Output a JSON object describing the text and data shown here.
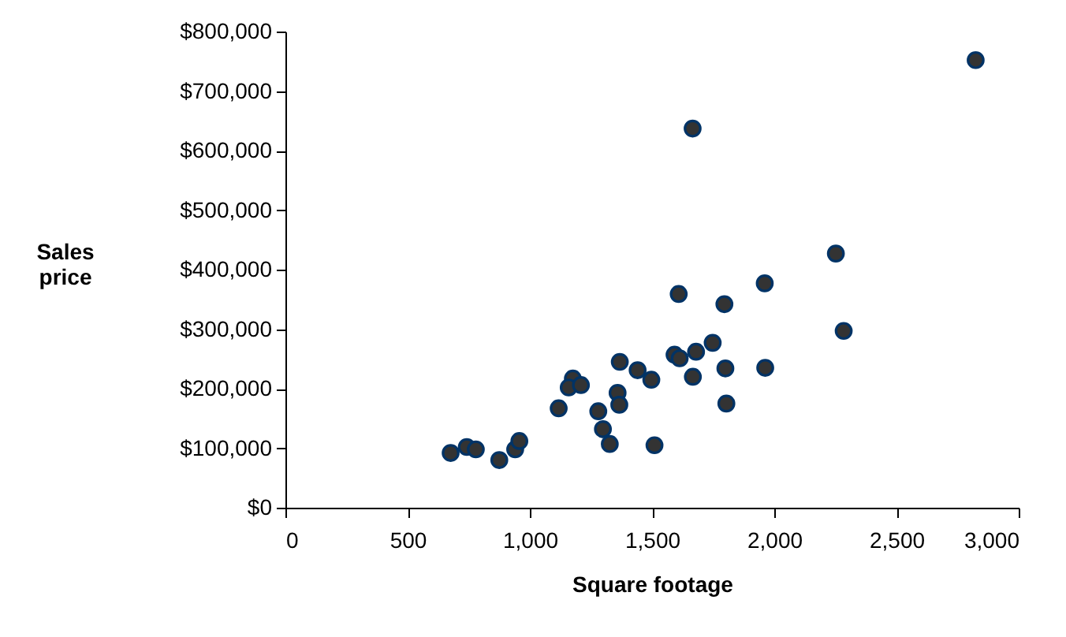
{
  "chart_data": {
    "type": "scatter",
    "xlabel": "Square footage",
    "ylabel": "Sales price",
    "x": [
      676,
      742,
      779,
      875,
      940,
      957,
      1118,
      1176,
      1159,
      1209,
      1280,
      1299,
      1327,
      1368,
      1359,
      1366,
      1441,
      1497,
      1510,
      1609,
      1592,
      1613,
      1680,
      1748,
      1667,
      1796,
      1800,
      1804,
      1961,
      1963,
      2252,
      2284,
      1666,
      2824
    ],
    "series": [
      {
        "color": "#333333",
        "values": [
          92000,
          102000,
          98000,
          80000,
          98000,
          112000,
          167000,
          217000,
          202000,
          206000,
          162000,
          132000,
          107000,
          245000,
          193000,
          173000,
          231000,
          215000,
          105000,
          359000,
          257000,
          251000,
          262000,
          277000,
          220000,
          342000,
          234000,
          175000,
          377000,
          235000,
          427000,
          297000,
          637000,
          752000
        ]
      }
    ],
    "xlim": [
      0,
      3000
    ],
    "xticks": [
      0,
      500,
      {
        "value": 1000,
        "label": "1,000"
      },
      {
        "value": 1500,
        "label": "1,500"
      },
      {
        "value": 2000,
        "label": "2,000"
      },
      {
        "value": 2500,
        "label": "2,500"
      },
      {
        "value": 3000,
        "label": "3,000"
      }
    ],
    "ylim": [
      0,
      800000
    ],
    "yticks": [
      {
        "value": 0,
        "label": "$0"
      },
      {
        "value": 100000,
        "label": "$100,000"
      },
      {
        "value": 200000,
        "label": "$200,000"
      },
      {
        "value": 300000,
        "label": "$300,000"
      },
      {
        "value": 400000,
        "label": "$400,000"
      },
      {
        "value": 500000,
        "label": "$500,000"
      },
      {
        "value": 600000,
        "label": "$600,000"
      },
      {
        "value": 700000,
        "label": "$700,000"
      },
      {
        "value": 800000,
        "label": "$800,000"
      }
    ],
    "grid": false,
    "marker": "circle"
  }
}
